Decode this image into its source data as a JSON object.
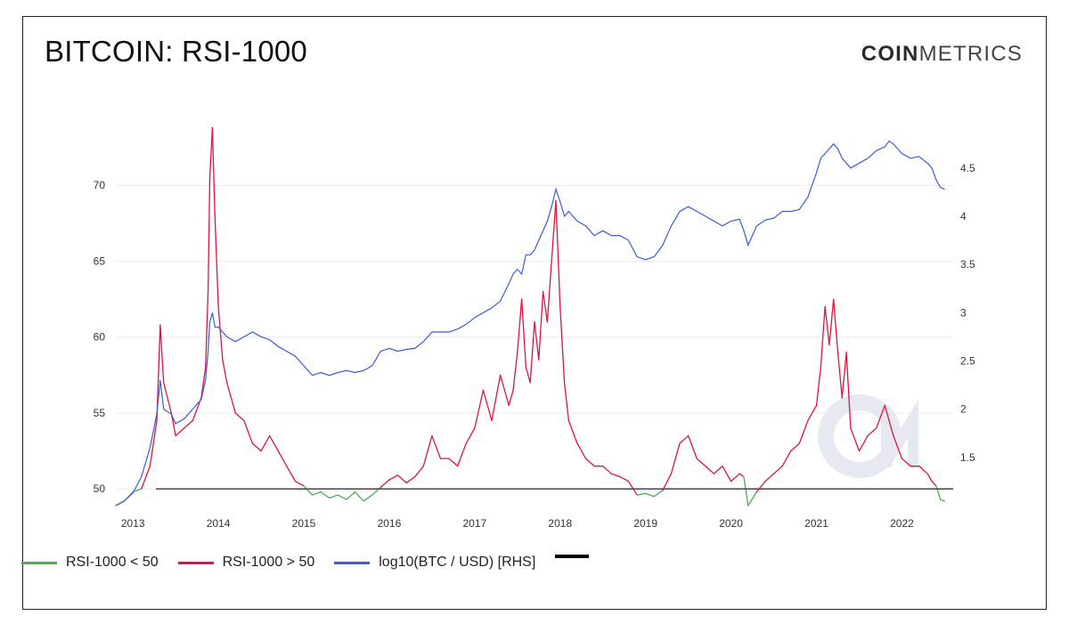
{
  "header": {
    "title": "BITCOIN: RSI-1000",
    "brand_bold": "COIN",
    "brand_light": "METRICS"
  },
  "legend": {
    "items": [
      {
        "label": "RSI-1000 < 50",
        "color": "#4caf50"
      },
      {
        "label": "RSI-1000 > 50",
        "color": "#e0133f"
      },
      {
        "label": "log10(BTC / USD) [RHS]",
        "color": "#3b5bdb"
      }
    ]
  },
  "chart_data": {
    "type": "line",
    "title": "BITCOIN: RSI-1000",
    "x_range": [
      2012.8,
      2022.6
    ],
    "x_ticks": [
      "2013",
      "2014",
      "2015",
      "2016",
      "2017",
      "2018",
      "2019",
      "2020",
      "2021",
      "2022"
    ],
    "y_left": {
      "ylim": [
        48.9,
        74
      ],
      "ticks": [
        "50",
        "55",
        "60",
        "65",
        "70"
      ],
      "reference_line": 50
    },
    "y_right": {
      "ylim": [
        1.0,
        4.95
      ],
      "ticks": [
        "1.5",
        "2",
        "2.5",
        "3",
        "3.5",
        "4",
        "4.5"
      ]
    },
    "grid": true,
    "legend_position": "bottom-left",
    "series": [
      {
        "name": "RSI-1000",
        "axis": "left",
        "color_below_50": "#4caf50",
        "color_above_50": "#e0133f",
        "x": [
          2012.8,
          2012.9,
          2013.0,
          2013.1,
          2013.2,
          2013.28,
          2013.32,
          2013.36,
          2013.45,
          2013.5,
          2013.6,
          2013.7,
          2013.8,
          2013.85,
          2013.88,
          2013.9,
          2013.93,
          2013.96,
          2014.0,
          2014.05,
          2014.1,
          2014.2,
          2014.3,
          2014.4,
          2014.5,
          2014.6,
          2014.7,
          2014.8,
          2014.9,
          2015.0,
          2015.1,
          2015.2,
          2015.3,
          2015.4,
          2015.5,
          2015.6,
          2015.7,
          2015.8,
          2015.9,
          2016.0,
          2016.1,
          2016.2,
          2016.3,
          2016.4,
          2016.5,
          2016.6,
          2016.7,
          2016.8,
          2016.9,
          2017.0,
          2017.1,
          2017.2,
          2017.3,
          2017.4,
          2017.45,
          2017.5,
          2017.55,
          2017.6,
          2017.65,
          2017.7,
          2017.75,
          2017.8,
          2017.85,
          2017.9,
          2017.95,
          2018.0,
          2018.05,
          2018.1,
          2018.2,
          2018.3,
          2018.4,
          2018.5,
          2018.6,
          2018.7,
          2018.8,
          2018.9,
          2019.0,
          2019.1,
          2019.2,
          2019.3,
          2019.4,
          2019.5,
          2019.6,
          2019.7,
          2019.8,
          2019.9,
          2020.0,
          2020.1,
          2020.15,
          2020.2,
          2020.3,
          2020.4,
          2020.5,
          2020.6,
          2020.7,
          2020.8,
          2020.9,
          2021.0,
          2021.05,
          2021.1,
          2021.15,
          2021.2,
          2021.25,
          2021.3,
          2021.35,
          2021.4,
          2021.5,
          2021.6,
          2021.7,
          2021.8,
          2021.85,
          2021.9,
          2022.0,
          2022.1,
          2022.2,
          2022.3,
          2022.35,
          2022.4,
          2022.45,
          2022.5
        ],
        "y": [
          48.9,
          49.2,
          49.8,
          50.0,
          51.5,
          54.5,
          60.8,
          57.0,
          55.0,
          53.5,
          54.0,
          54.5,
          56.0,
          58.0,
          63.0,
          70.5,
          73.8,
          68.0,
          62.0,
          58.5,
          57.0,
          55.0,
          54.5,
          53.0,
          52.5,
          53.5,
          52.5,
          51.5,
          50.5,
          50.2,
          49.6,
          49.8,
          49.4,
          49.6,
          49.3,
          49.8,
          49.2,
          49.6,
          50.1,
          50.6,
          50.9,
          50.4,
          50.8,
          51.5,
          53.5,
          52.0,
          52.0,
          51.5,
          53.0,
          54.0,
          56.5,
          54.5,
          57.5,
          55.5,
          56.5,
          59.0,
          62.5,
          58.0,
          57.0,
          61.0,
          58.5,
          63.0,
          61.0,
          65.0,
          69.0,
          62.0,
          57.0,
          54.5,
          53.0,
          52.0,
          51.5,
          51.5,
          51.0,
          50.8,
          50.5,
          49.6,
          49.7,
          49.5,
          49.9,
          51.0,
          53.0,
          53.5,
          52.0,
          51.5,
          51.0,
          51.5,
          50.5,
          51.0,
          50.8,
          48.9,
          49.8,
          50.5,
          51.0,
          51.5,
          52.5,
          53.0,
          54.5,
          55.5,
          58.0,
          62.0,
          59.5,
          62.5,
          59.0,
          56.0,
          59.0,
          54.0,
          52.5,
          53.5,
          54.0,
          55.5,
          54.5,
          53.5,
          52.0,
          51.5,
          51.5,
          51.0,
          50.5,
          50.2,
          49.3,
          49.2
        ]
      },
      {
        "name": "log10(BTC / USD) [RHS]",
        "axis": "right",
        "color": "#3b5bdb",
        "x": [
          2012.8,
          2012.9,
          2013.0,
          2013.1,
          2013.2,
          2013.28,
          2013.32,
          2013.36,
          2013.45,
          2013.5,
          2013.6,
          2013.7,
          2013.8,
          2013.85,
          2013.88,
          2013.9,
          2013.93,
          2013.96,
          2014.0,
          2014.05,
          2014.1,
          2014.2,
          2014.3,
          2014.4,
          2014.5,
          2014.6,
          2014.7,
          2014.8,
          2014.9,
          2015.0,
          2015.1,
          2015.2,
          2015.3,
          2015.4,
          2015.5,
          2015.6,
          2015.7,
          2015.8,
          2015.9,
          2016.0,
          2016.1,
          2016.2,
          2016.3,
          2016.4,
          2016.5,
          2016.6,
          2016.7,
          2016.8,
          2016.9,
          2017.0,
          2017.1,
          2017.2,
          2017.3,
          2017.4,
          2017.45,
          2017.5,
          2017.55,
          2017.6,
          2017.65,
          2017.7,
          2017.75,
          2017.8,
          2017.85,
          2017.9,
          2017.95,
          2018.0,
          2018.05,
          2018.1,
          2018.2,
          2018.3,
          2018.4,
          2018.5,
          2018.6,
          2018.7,
          2018.8,
          2018.9,
          2019.0,
          2019.1,
          2019.2,
          2019.3,
          2019.4,
          2019.5,
          2019.6,
          2019.7,
          2019.8,
          2019.9,
          2020.0,
          2020.1,
          2020.15,
          2020.2,
          2020.3,
          2020.4,
          2020.5,
          2020.6,
          2020.7,
          2020.8,
          2020.9,
          2021.0,
          2021.05,
          2021.1,
          2021.15,
          2021.2,
          2021.25,
          2021.3,
          2021.35,
          2021.4,
          2021.5,
          2021.6,
          2021.7,
          2021.8,
          2021.85,
          2021.9,
          2022.0,
          2022.1,
          2022.2,
          2022.3,
          2022.35,
          2022.4,
          2022.45,
          2022.5
        ],
        "y": [
          1.0,
          1.05,
          1.13,
          1.3,
          1.6,
          1.95,
          2.3,
          2.0,
          1.95,
          1.85,
          1.9,
          2.0,
          2.1,
          2.3,
          2.6,
          2.9,
          3.0,
          2.85,
          2.85,
          2.8,
          2.75,
          2.7,
          2.75,
          2.8,
          2.75,
          2.72,
          2.65,
          2.6,
          2.55,
          2.45,
          2.35,
          2.38,
          2.35,
          2.38,
          2.4,
          2.38,
          2.4,
          2.45,
          2.6,
          2.63,
          2.6,
          2.62,
          2.63,
          2.7,
          2.8,
          2.8,
          2.8,
          2.83,
          2.88,
          2.95,
          3.0,
          3.05,
          3.12,
          3.3,
          3.4,
          3.45,
          3.4,
          3.6,
          3.6,
          3.65,
          3.75,
          3.85,
          3.95,
          4.1,
          4.28,
          4.15,
          4.0,
          4.05,
          3.95,
          3.9,
          3.8,
          3.85,
          3.8,
          3.8,
          3.75,
          3.58,
          3.55,
          3.58,
          3.7,
          3.9,
          4.05,
          4.1,
          4.05,
          4.0,
          3.95,
          3.9,
          3.95,
          3.97,
          3.85,
          3.7,
          3.9,
          3.96,
          3.98,
          4.05,
          4.05,
          4.07,
          4.2,
          4.45,
          4.6,
          4.65,
          4.7,
          4.75,
          4.7,
          4.6,
          4.55,
          4.5,
          4.55,
          4.6,
          4.68,
          4.72,
          4.78,
          4.75,
          4.65,
          4.6,
          4.62,
          4.55,
          4.5,
          4.38,
          4.3,
          4.28
        ]
      }
    ]
  }
}
